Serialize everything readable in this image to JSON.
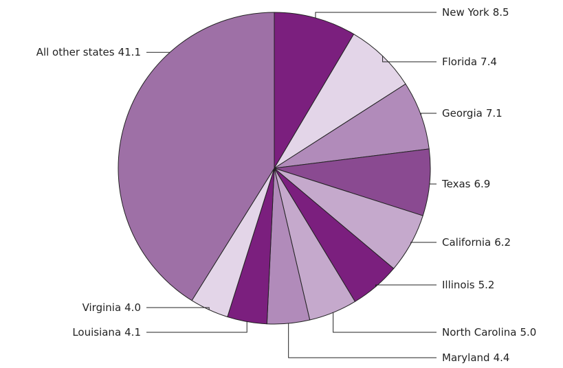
{
  "chart_data": {
    "type": "pie",
    "categories": [
      "New York",
      "Florida",
      "Georgia",
      "Texas",
      "California",
      "Illinois",
      "North Carolina",
      "Maryland",
      "Louisiana",
      "Virginia",
      "All other states"
    ],
    "values": [
      8.5,
      7.4,
      7.1,
      6.9,
      6.2,
      5.2,
      5.0,
      4.4,
      4.1,
      4.0,
      41.1
    ],
    "value_labels": [
      "8.5",
      "7.4",
      "7.1",
      "6.9",
      "6.2",
      "5.2",
      "5.0",
      "4.4",
      "4.1",
      "4.0",
      "41.1"
    ],
    "colors": [
      "#7b1f7e",
      "#e3d5e8",
      "#b18bba",
      "#8a4a91",
      "#c5a9cc",
      "#7b1f7e",
      "#c5a9cc",
      "#b18bba",
      "#7b1f7e",
      "#e3d5e8",
      "#9e70a6"
    ]
  }
}
